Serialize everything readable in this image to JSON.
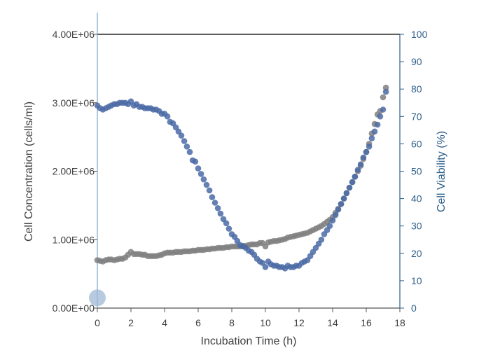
{
  "chart_data": {
    "type": "scatter",
    "title": "",
    "xlabel": "Incubation Time (h)",
    "ylabel": "Cell Concentration (cells/ml)",
    "y2label": "Cell Viability (%)",
    "xlim": [
      0,
      18
    ],
    "ylim": [
      0,
      4000000
    ],
    "y2lim": [
      0,
      100
    ],
    "x_ticks": [
      "0",
      "2",
      "4",
      "6",
      "8",
      "10",
      "12",
      "14",
      "16",
      "18"
    ],
    "y_ticks": [
      "0.00E+00",
      "1.00E+06",
      "2.00E+06",
      "3.00E+06",
      "4.00E+06"
    ],
    "y2_ticks": [
      "0",
      "10",
      "20",
      "30",
      "40",
      "50",
      "60",
      "70",
      "80",
      "90",
      "100"
    ],
    "grid": false,
    "legend": "none",
    "series": [
      {
        "axis": "left",
        "color": "#7f7f7f",
        "points": [
          [
            0.0,
            700000
          ],
          [
            0.17,
            690000
          ],
          [
            0.33,
            680000
          ],
          [
            0.5,
            700000
          ],
          [
            0.67,
            710000
          ],
          [
            0.83,
            710000
          ],
          [
            1.0,
            700000
          ],
          [
            1.17,
            710000
          ],
          [
            1.33,
            720000
          ],
          [
            1.5,
            720000
          ],
          [
            1.67,
            740000
          ],
          [
            1.83,
            780000
          ],
          [
            2.0,
            820000
          ],
          [
            2.17,
            790000
          ],
          [
            2.33,
            790000
          ],
          [
            2.5,
            790000
          ],
          [
            2.67,
            780000
          ],
          [
            2.83,
            780000
          ],
          [
            3.0,
            760000
          ],
          [
            3.17,
            760000
          ],
          [
            3.33,
            760000
          ],
          [
            3.5,
            760000
          ],
          [
            3.67,
            770000
          ],
          [
            3.83,
            780000
          ],
          [
            4.0,
            800000
          ],
          [
            4.17,
            810000
          ],
          [
            4.33,
            810000
          ],
          [
            4.5,
            810000
          ],
          [
            4.67,
            820000
          ],
          [
            4.83,
            820000
          ],
          [
            5.0,
            820000
          ],
          [
            5.17,
            830000
          ],
          [
            5.33,
            830000
          ],
          [
            5.5,
            830000
          ],
          [
            5.67,
            840000
          ],
          [
            5.83,
            840000
          ],
          [
            6.0,
            850000
          ],
          [
            6.17,
            850000
          ],
          [
            6.33,
            850000
          ],
          [
            6.5,
            860000
          ],
          [
            6.67,
            860000
          ],
          [
            6.83,
            870000
          ],
          [
            7.0,
            870000
          ],
          [
            7.17,
            880000
          ],
          [
            7.33,
            880000
          ],
          [
            7.5,
            880000
          ],
          [
            7.67,
            890000
          ],
          [
            7.83,
            890000
          ],
          [
            8.0,
            900000
          ],
          [
            8.17,
            900000
          ],
          [
            8.33,
            900000
          ],
          [
            8.5,
            900000
          ],
          [
            8.67,
            910000
          ],
          [
            8.83,
            910000
          ],
          [
            9.0,
            920000
          ],
          [
            9.17,
            930000
          ],
          [
            9.33,
            930000
          ],
          [
            9.5,
            930000
          ],
          [
            9.67,
            950000
          ],
          [
            9.83,
            950000
          ],
          [
            10.0,
            900000
          ],
          [
            10.17,
            960000
          ],
          [
            10.33,
            970000
          ],
          [
            10.5,
            980000
          ],
          [
            10.67,
            980000
          ],
          [
            10.83,
            990000
          ],
          [
            11.0,
            1000000
          ],
          [
            11.17,
            1010000
          ],
          [
            11.33,
            1030000
          ],
          [
            11.5,
            1040000
          ],
          [
            11.67,
            1050000
          ],
          [
            11.83,
            1060000
          ],
          [
            12.0,
            1070000
          ],
          [
            12.17,
            1080000
          ],
          [
            12.33,
            1090000
          ],
          [
            12.5,
            1100000
          ],
          [
            12.67,
            1120000
          ],
          [
            12.83,
            1140000
          ],
          [
            13.0,
            1160000
          ],
          [
            13.17,
            1180000
          ],
          [
            13.33,
            1200000
          ],
          [
            13.5,
            1230000
          ],
          [
            13.67,
            1260000
          ],
          [
            13.83,
            1290000
          ],
          [
            14.0,
            1330000
          ],
          [
            14.17,
            1390000
          ],
          [
            14.33,
            1450000
          ],
          [
            14.5,
            1520000
          ],
          [
            14.67,
            1600000
          ],
          [
            14.83,
            1680000
          ],
          [
            15.0,
            1760000
          ],
          [
            15.17,
            1840000
          ],
          [
            15.33,
            1920000
          ],
          [
            15.5,
            2000000
          ],
          [
            15.67,
            2080000
          ],
          [
            15.83,
            2180000
          ],
          [
            16.0,
            2280000
          ],
          [
            16.17,
            2400000
          ],
          [
            16.33,
            2550000
          ],
          [
            16.5,
            2690000
          ],
          [
            16.67,
            2830000
          ],
          [
            16.83,
            2880000
          ],
          [
            17.0,
            3080000
          ],
          [
            17.17,
            3220000
          ]
        ]
      },
      {
        "axis": "right",
        "color": "#4a6aa5",
        "points": [
          [
            0.0,
            74
          ],
          [
            0.17,
            73
          ],
          [
            0.33,
            72.5
          ],
          [
            0.5,
            73
          ],
          [
            0.67,
            73.5
          ],
          [
            0.83,
            74
          ],
          [
            1.0,
            74.5
          ],
          [
            1.17,
            74.5
          ],
          [
            1.33,
            75
          ],
          [
            1.5,
            75
          ],
          [
            1.67,
            75
          ],
          [
            1.83,
            74.5
          ],
          [
            2.0,
            75.5
          ],
          [
            2.17,
            74
          ],
          [
            2.33,
            74.5
          ],
          [
            2.5,
            73.5
          ],
          [
            2.67,
            73.5
          ],
          [
            2.83,
            73
          ],
          [
            3.0,
            73
          ],
          [
            3.17,
            73
          ],
          [
            3.33,
            72.5
          ],
          [
            3.5,
            72.5
          ],
          [
            3.67,
            72
          ],
          [
            3.83,
            71
          ],
          [
            4.0,
            71
          ],
          [
            4.17,
            70
          ],
          [
            4.33,
            68
          ],
          [
            4.5,
            67.5
          ],
          [
            4.67,
            66
          ],
          [
            4.83,
            64.5
          ],
          [
            5.0,
            63
          ],
          [
            5.17,
            61
          ],
          [
            5.33,
            59
          ],
          [
            5.5,
            57
          ],
          [
            5.67,
            54
          ],
          [
            5.83,
            53.5
          ],
          [
            6.0,
            51
          ],
          [
            6.17,
            49
          ],
          [
            6.33,
            47
          ],
          [
            6.5,
            45
          ],
          [
            6.67,
            43
          ],
          [
            6.83,
            40.5
          ],
          [
            7.0,
            38.5
          ],
          [
            7.17,
            36.5
          ],
          [
            7.33,
            34.5
          ],
          [
            7.5,
            32.5
          ],
          [
            7.67,
            31
          ],
          [
            7.83,
            29
          ],
          [
            8.0,
            27
          ],
          [
            8.17,
            26
          ],
          [
            8.33,
            24.5
          ],
          [
            8.5,
            23
          ],
          [
            8.67,
            22.5
          ],
          [
            8.83,
            22
          ],
          [
            9.0,
            21
          ],
          [
            9.17,
            20.5
          ],
          [
            9.33,
            19.5
          ],
          [
            9.5,
            18
          ],
          [
            9.67,
            17
          ],
          [
            9.83,
            16.5
          ],
          [
            10.0,
            15
          ],
          [
            10.17,
            17
          ],
          [
            10.33,
            16
          ],
          [
            10.5,
            15.5
          ],
          [
            10.67,
            15.5
          ],
          [
            10.83,
            15
          ],
          [
            11.0,
            15
          ],
          [
            11.17,
            14.5
          ],
          [
            11.33,
            15.5
          ],
          [
            11.5,
            15
          ],
          [
            11.67,
            15
          ],
          [
            11.83,
            15.5
          ],
          [
            12.0,
            15.5
          ],
          [
            12.17,
            16.5
          ],
          [
            12.33,
            17
          ],
          [
            12.5,
            17.5
          ],
          [
            12.67,
            19
          ],
          [
            12.83,
            20.5
          ],
          [
            13.0,
            22
          ],
          [
            13.17,
            23.5
          ],
          [
            13.33,
            25
          ],
          [
            13.5,
            27
          ],
          [
            13.67,
            28.5
          ],
          [
            13.83,
            30
          ],
          [
            14.0,
            32
          ],
          [
            14.17,
            34
          ],
          [
            14.33,
            36
          ],
          [
            14.5,
            38
          ],
          [
            14.67,
            40
          ],
          [
            14.83,
            42
          ],
          [
            15.0,
            44
          ],
          [
            15.17,
            46
          ],
          [
            15.33,
            48
          ],
          [
            15.5,
            50.5
          ],
          [
            15.67,
            52.5
          ],
          [
            15.83,
            55
          ],
          [
            16.0,
            57
          ],
          [
            16.17,
            59
          ],
          [
            16.33,
            62
          ],
          [
            16.5,
            64.5
          ],
          [
            16.67,
            67
          ],
          [
            16.83,
            70
          ],
          [
            17.0,
            72.5
          ],
          [
            17.17,
            79
          ]
        ]
      }
    ],
    "marker": {
      "x": 0,
      "y": 150000,
      "color": "#9fb8d6"
    }
  }
}
